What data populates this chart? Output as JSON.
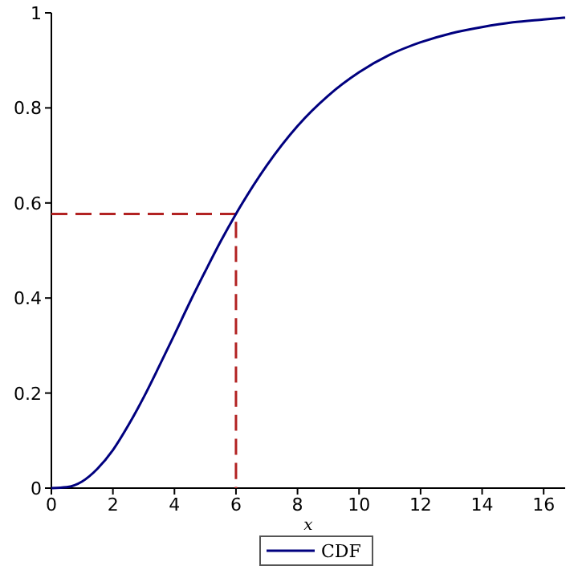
{
  "chart_data": {
    "type": "line",
    "xlabel": "x",
    "xlim": [
      0,
      16.7
    ],
    "xticks": [
      0,
      2,
      4,
      6,
      8,
      10,
      12,
      14,
      16
    ],
    "ylim": [
      0,
      1
    ],
    "yticks": [
      0,
      0.2,
      0.4,
      0.6,
      0.8,
      1
    ],
    "grid": false,
    "legend": "bottom",
    "marker": "none",
    "series": [
      {
        "name": "CDF",
        "color": "#00007f",
        "line_style": "solid",
        "x": [
          0,
          0.5,
          1,
          1.5,
          2,
          2.5,
          3,
          3.5,
          4,
          4.5,
          5,
          5.5,
          6,
          7,
          8,
          9,
          10,
          11,
          12,
          13,
          14,
          15,
          16,
          16.7
        ],
        "values": [
          0,
          0.002,
          0.014,
          0.041,
          0.08,
          0.132,
          0.191,
          0.256,
          0.323,
          0.391,
          0.456,
          0.519,
          0.577,
          0.679,
          0.762,
          0.826,
          0.875,
          0.912,
          0.938,
          0.957,
          0.97,
          0.98,
          0.986,
          0.99
        ]
      },
      {
        "color": "#b22222",
        "line_style": "dashed",
        "x": [
          0,
          6,
          6
        ],
        "values": [
          0.577,
          0.577,
          0
        ]
      }
    ]
  }
}
